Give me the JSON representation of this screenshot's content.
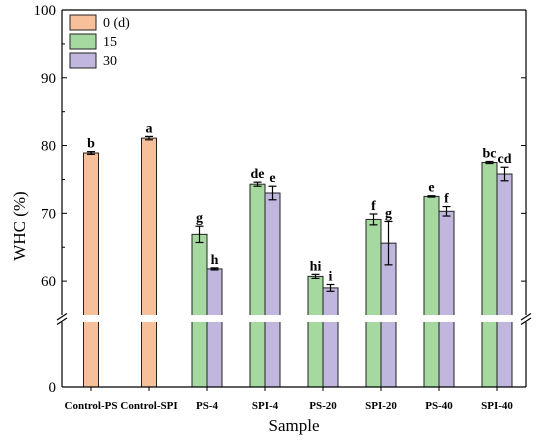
{
  "chart_data": {
    "type": "bar",
    "xlabel": "Sample",
    "ylabel": "WHC (%)",
    "categories": [
      "Control-PS",
      "Control-SPI",
      "PS-4",
      "SPI-4",
      "PS-20",
      "SPI-20",
      "PS-40",
      "SPI-40"
    ],
    "y_ticks_upper": [
      60,
      70,
      80,
      90,
      100
    ],
    "y_ticks_lower": [
      0
    ],
    "ylim_lower": [
      0,
      10
    ],
    "ylim_upper": [
      55,
      100
    ],
    "axis_break": true,
    "grid": false,
    "legend_position": "top-left",
    "series": [
      {
        "name": "0 (d)",
        "color": "#F8C09A",
        "values": [
          78.9,
          81.1,
          null,
          null,
          null,
          null,
          null,
          null
        ],
        "errors": [
          0.2,
          0.25,
          null,
          null,
          null,
          null,
          null,
          null
        ],
        "labels": [
          "b",
          "a",
          "",
          "",
          "",
          "",
          "",
          ""
        ]
      },
      {
        "name": "15",
        "color": "#A6D9A0",
        "values": [
          null,
          null,
          66.9,
          74.3,
          60.7,
          69.1,
          72.5,
          77.5
        ],
        "errors": [
          null,
          null,
          1.2,
          0.3,
          0.3,
          0.8,
          0.1,
          0.15
        ],
        "labels": [
          "",
          "",
          "g",
          "de",
          "hi",
          "f",
          "e",
          "bc"
        ]
      },
      {
        "name": "30",
        "color": "#C1B6DD",
        "values": [
          null,
          null,
          61.8,
          73.0,
          59.0,
          65.6,
          70.3,
          75.8
        ],
        "errors": [
          null,
          null,
          0.15,
          1.0,
          0.5,
          3.2,
          0.7,
          1.0
        ],
        "labels": [
          "",
          "",
          "h",
          "e",
          "i",
          "g",
          "f",
          "cd"
        ]
      }
    ]
  }
}
